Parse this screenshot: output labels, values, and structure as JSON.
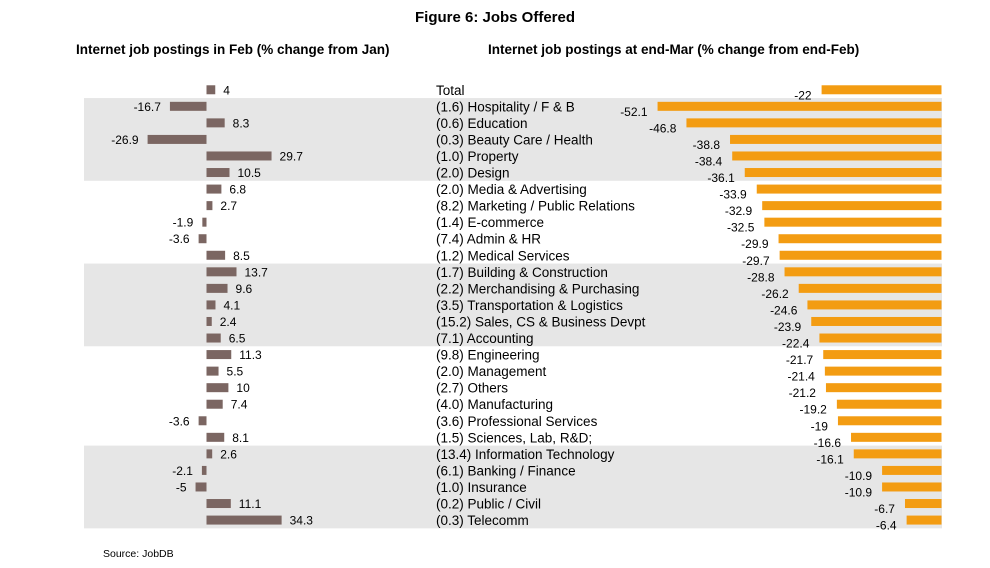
{
  "figure_title": "Figure 6: Jobs Offered",
  "left_subtitle": "Internet job postings in Feb (% change from Jan)",
  "right_subtitle": "Internet job postings at end-Mar (% change from end-Feb)",
  "source": "Source: JobDB",
  "colors": {
    "left_bar": "#7b6662",
    "right_bar": "#f39c12",
    "band": "#e6e6e6"
  },
  "chart_data": {
    "type": "bar",
    "orientation": "horizontal",
    "title": "Figure 6: Jobs Offered",
    "categories": [
      "Total",
      "(1.6) Hospitality / F & B",
      "(0.6) Education",
      "(0.3) Beauty Care / Health",
      "(1.0) Property",
      "(2.0) Design",
      "(2.0) Media & Advertising",
      "(8.2) Marketing / Public Relations",
      "(1.4) E-commerce",
      "(7.4) Admin & HR",
      "(1.2) Medical Services",
      "(1.7) Building & Construction",
      "(2.2) Merchandising & Purchasing",
      "(3.5) Transportation & Logistics",
      "(15.2) Sales, CS & Business Devpt",
      "(7.1) Accounting",
      "(9.8) Engineering",
      "(2.0) Management",
      "(2.7) Others",
      "(4.0) Manufacturing",
      "(3.6) Professional Services",
      "(1.5) Sciences, Lab, R&D;",
      "(13.4) Information Technology",
      "(6.1) Banking / Finance",
      "(1.0) Insurance",
      "(0.2) Public / Civil",
      "(0.3) Telecomm"
    ],
    "series": [
      {
        "name": "Internet job postings in Feb (% change from Jan)",
        "values": [
          4,
          -16.7,
          8.3,
          -26.9,
          29.7,
          10.5,
          6.8,
          2.7,
          -1.9,
          -3.6,
          8.5,
          13.7,
          9.6,
          4.1,
          2.4,
          6.5,
          11.3,
          5.5,
          10,
          7.4,
          -3.6,
          8.1,
          2.6,
          -2.1,
          -5,
          11.1,
          34.3
        ]
      },
      {
        "name": "Internet job postings at end-Mar (% change from end-Feb)",
        "values": [
          -22,
          -52.1,
          -46.8,
          -38.8,
          -38.4,
          -36.1,
          -33.9,
          -32.9,
          -32.5,
          -29.9,
          -29.7,
          -28.8,
          -26.2,
          -24.6,
          -23.9,
          -22.4,
          -21.7,
          -21.4,
          -21.2,
          -19.2,
          -19,
          -16.6,
          -16.1,
          -10.9,
          -10.9,
          -6.7,
          -6.4
        ]
      }
    ],
    "bands": [
      [
        1,
        5
      ],
      [
        11,
        15
      ],
      [
        22,
        26
      ]
    ]
  }
}
